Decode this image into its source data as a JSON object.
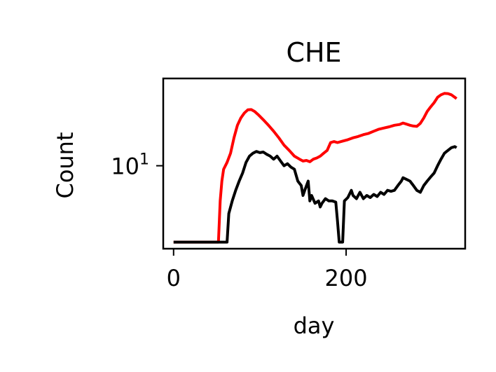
{
  "chart_data": {
    "type": "line",
    "title": "CHE",
    "xlabel": "day",
    "ylabel": "Count",
    "x_scale": "linear",
    "y_scale": "log",
    "xlim": [
      -12,
      338
    ],
    "ylim": [
      3.0,
      35.5
    ],
    "grid": false,
    "x_ticks": [
      {
        "value": 0,
        "label": "0"
      },
      {
        "value": 200,
        "label": "200"
      }
    ],
    "y_ticks": [
      {
        "value": 10,
        "label": "10",
        "exponent": "1"
      }
    ],
    "series": [
      {
        "color": "#ff0000",
        "points": [
          [
            0,
            3.3
          ],
          [
            10,
            3.3
          ],
          [
            20,
            3.3
          ],
          [
            30,
            3.3
          ],
          [
            40,
            3.3
          ],
          [
            50,
            3.3
          ],
          [
            52,
            3.3
          ],
          [
            54,
            6.0
          ],
          [
            56,
            8.0
          ],
          [
            58,
            9.5
          ],
          [
            62,
            10.5
          ],
          [
            66,
            12.0
          ],
          [
            70,
            15.0
          ],
          [
            74,
            18.0
          ],
          [
            78,
            20.0
          ],
          [
            82,
            21.5
          ],
          [
            86,
            22.5
          ],
          [
            90,
            22.6
          ],
          [
            94,
            22.0
          ],
          [
            98,
            21.0
          ],
          [
            104,
            19.5
          ],
          [
            110,
            18.0
          ],
          [
            116,
            16.5
          ],
          [
            122,
            15.0
          ],
          [
            128,
            13.5
          ],
          [
            134,
            12.5
          ],
          [
            140,
            11.5
          ],
          [
            146,
            11.0
          ],
          [
            150,
            10.7
          ],
          [
            154,
            10.8
          ],
          [
            158,
            10.6
          ],
          [
            162,
            11.0
          ],
          [
            166,
            11.2
          ],
          [
            170,
            11.5
          ],
          [
            174,
            12.0
          ],
          [
            178,
            12.5
          ],
          [
            182,
            14.0
          ],
          [
            186,
            14.2
          ],
          [
            190,
            14.0
          ],
          [
            196,
            14.3
          ],
          [
            202,
            14.6
          ],
          [
            208,
            15.0
          ],
          [
            214,
            15.3
          ],
          [
            220,
            15.7
          ],
          [
            226,
            16.0
          ],
          [
            232,
            16.5
          ],
          [
            238,
            17.0
          ],
          [
            244,
            17.3
          ],
          [
            250,
            17.6
          ],
          [
            256,
            18.0
          ],
          [
            262,
            18.2
          ],
          [
            266,
            18.6
          ],
          [
            270,
            18.3
          ],
          [
            274,
            18.0
          ],
          [
            278,
            17.8
          ],
          [
            282,
            17.7
          ],
          [
            286,
            18.5
          ],
          [
            290,
            20.0
          ],
          [
            294,
            22.0
          ],
          [
            298,
            23.5
          ],
          [
            302,
            25.0
          ],
          [
            306,
            27.0
          ],
          [
            310,
            28.0
          ],
          [
            314,
            28.6
          ],
          [
            318,
            28.5
          ],
          [
            322,
            28.0
          ],
          [
            326,
            27.0
          ],
          [
            328,
            26.5
          ]
        ]
      },
      {
        "color": "#000000",
        "points": [
          [
            0,
            3.3
          ],
          [
            20,
            3.3
          ],
          [
            40,
            3.3
          ],
          [
            60,
            3.3
          ],
          [
            62,
            3.3
          ],
          [
            64,
            5.0
          ],
          [
            68,
            6.0
          ],
          [
            72,
            7.0
          ],
          [
            76,
            8.0
          ],
          [
            80,
            9.0
          ],
          [
            84,
            10.5
          ],
          [
            88,
            11.5
          ],
          [
            92,
            12.0
          ],
          [
            96,
            12.3
          ],
          [
            100,
            12.1
          ],
          [
            104,
            12.2
          ],
          [
            108,
            11.8
          ],
          [
            112,
            11.5
          ],
          [
            116,
            11.0
          ],
          [
            120,
            11.5
          ],
          [
            124,
            10.7
          ],
          [
            128,
            10.0
          ],
          [
            132,
            10.3
          ],
          [
            136,
            9.8
          ],
          [
            140,
            9.5
          ],
          [
            144,
            8.0
          ],
          [
            148,
            7.5
          ],
          [
            150,
            6.5
          ],
          [
            152,
            7.0
          ],
          [
            156,
            8.0
          ],
          [
            158,
            6.0
          ],
          [
            160,
            6.5
          ],
          [
            164,
            5.8
          ],
          [
            168,
            6.0
          ],
          [
            170,
            5.5
          ],
          [
            172,
            5.8
          ],
          [
            176,
            6.2
          ],
          [
            180,
            6.0
          ],
          [
            184,
            6.0
          ],
          [
            188,
            5.9
          ],
          [
            190,
            4.5
          ],
          [
            192,
            3.3
          ],
          [
            196,
            3.3
          ],
          [
            198,
            6.0
          ],
          [
            202,
            6.3
          ],
          [
            206,
            7.0
          ],
          [
            208,
            6.5
          ],
          [
            212,
            6.2
          ],
          [
            216,
            6.8
          ],
          [
            220,
            6.2
          ],
          [
            224,
            6.5
          ],
          [
            228,
            6.3
          ],
          [
            232,
            6.6
          ],
          [
            236,
            6.4
          ],
          [
            240,
            6.8
          ],
          [
            244,
            6.6
          ],
          [
            248,
            7.0
          ],
          [
            252,
            6.9
          ],
          [
            256,
            7.0
          ],
          [
            260,
            7.5
          ],
          [
            264,
            8.0
          ],
          [
            266,
            8.4
          ],
          [
            270,
            8.2
          ],
          [
            274,
            8.0
          ],
          [
            278,
            7.5
          ],
          [
            282,
            7.0
          ],
          [
            286,
            6.8
          ],
          [
            290,
            7.5
          ],
          [
            294,
            8.0
          ],
          [
            298,
            8.5
          ],
          [
            302,
            9.0
          ],
          [
            306,
            10.0
          ],
          [
            310,
            11.0
          ],
          [
            314,
            12.0
          ],
          [
            318,
            12.5
          ],
          [
            322,
            13.0
          ],
          [
            326,
            13.2
          ],
          [
            328,
            13.0
          ]
        ]
      }
    ]
  }
}
